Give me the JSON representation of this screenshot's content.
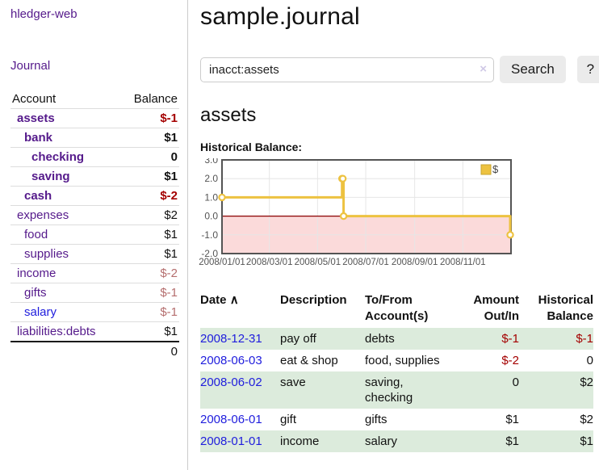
{
  "app": {
    "title": "hledger-web"
  },
  "sidebar": {
    "journal_link": "Journal",
    "accounts": {
      "headers": [
        "Account",
        "Balance"
      ],
      "rows": [
        {
          "account": "assets",
          "balance": "$-1",
          "level": 1,
          "bold": true,
          "balance_style": "neg-dark",
          "link_style": "purple"
        },
        {
          "account": "bank",
          "balance": "$1",
          "level": 2,
          "bold": true,
          "balance_style": "plain",
          "link_style": "purple"
        },
        {
          "account": "checking",
          "balance": "0",
          "level": 3,
          "bold": true,
          "balance_style": "plain",
          "link_style": "purple"
        },
        {
          "account": "saving",
          "balance": "$1",
          "level": 3,
          "bold": true,
          "balance_style": "plain",
          "link_style": "purple"
        },
        {
          "account": "cash",
          "balance": "$-2",
          "level": 2,
          "bold": true,
          "balance_style": "neg-dark",
          "link_style": "purple"
        },
        {
          "account": "expenses",
          "balance": "$2",
          "level": 1,
          "bold": false,
          "balance_style": "plain",
          "link_style": "purple"
        },
        {
          "account": "food",
          "balance": "$1",
          "level": 2,
          "bold": false,
          "balance_style": "plain",
          "link_style": "purple"
        },
        {
          "account": "supplies",
          "balance": "$1",
          "level": 2,
          "bold": false,
          "balance_style": "plain",
          "link_style": "purple"
        },
        {
          "account": "income",
          "balance": "$-2",
          "level": 1,
          "bold": false,
          "balance_style": "neg-rose",
          "link_style": "purple"
        },
        {
          "account": "gifts",
          "balance": "$-1",
          "level": 2,
          "bold": false,
          "balance_style": "neg-rose",
          "link_style": "purple"
        },
        {
          "account": "salary",
          "balance": "$-1",
          "level": 2,
          "bold": false,
          "balance_style": "neg-rose",
          "link_style": "blue"
        },
        {
          "account": "liabilities:debts",
          "balance": "$1",
          "level": 1,
          "bold": false,
          "balance_style": "plain",
          "link_style": "purple"
        }
      ],
      "total": "0"
    }
  },
  "main": {
    "title": "sample.journal",
    "search": {
      "value": "inacct:assets",
      "clear_icon": "×",
      "button_label": "Search",
      "help_label": "?"
    },
    "account_heading": "assets",
    "chart_label": "Historical Balance:",
    "register": {
      "headers": {
        "date": "Date",
        "sort_caret": "∧",
        "description": "Description",
        "accounts": "To/From Account(s)",
        "amount": "Amount Out/In",
        "balance": "Historical Balance"
      },
      "rows": [
        {
          "date": "2008-12-31",
          "description": "pay off",
          "accounts": "debts",
          "amount": "$-1",
          "amount_negative": true,
          "balance": "$-1",
          "balance_negative": true
        },
        {
          "date": "2008-06-03",
          "description": "eat & shop",
          "accounts": "food, supplies",
          "amount": "$-2",
          "amount_negative": true,
          "balance": "0",
          "balance_negative": false
        },
        {
          "date": "2008-06-02",
          "description": "save",
          "accounts": "saving, checking",
          "amount": "0",
          "amount_negative": false,
          "balance": "$2",
          "balance_negative": false
        },
        {
          "date": "2008-06-01",
          "description": "gift",
          "accounts": "gifts",
          "amount": "$1",
          "amount_negative": false,
          "balance": "$2",
          "balance_negative": false
        },
        {
          "date": "2008-01-01",
          "description": "income",
          "accounts": "salary",
          "amount": "$1",
          "amount_negative": false,
          "balance": "$1",
          "balance_negative": false
        }
      ]
    }
  },
  "chart_data": {
    "type": "line",
    "step": true,
    "title": "Historical Balance",
    "series": [
      {
        "name": "$",
        "color": "#edc240",
        "points": [
          {
            "x": "2008-01-01",
            "y": 1
          },
          {
            "x": "2008-06-01",
            "y": 2
          },
          {
            "x": "2008-06-02",
            "y": 2
          },
          {
            "x": "2008-06-03",
            "y": 0
          },
          {
            "x": "2008-12-31",
            "y": -1
          }
        ]
      }
    ],
    "xlim": [
      "2008-01-01",
      "2009-01-01"
    ],
    "ylim": [
      -2,
      3
    ],
    "x_ticks": [
      {
        "date": "2008-01-01",
        "label": "2008/01/01"
      },
      {
        "date": "2008-03-01",
        "label": "2008/03/01"
      },
      {
        "date": "2008-05-01",
        "label": "2008/05/01"
      },
      {
        "date": "2008-07-01",
        "label": "2008/07/01"
      },
      {
        "date": "2008-09-01",
        "label": "2008/09/01"
      },
      {
        "date": "2008-11-01",
        "label": "2008/11/01"
      }
    ],
    "y_ticks": [
      {
        "value": 3,
        "label": "3.0"
      },
      {
        "value": 2,
        "label": "2.0"
      },
      {
        "value": 1,
        "label": "1.0"
      },
      {
        "value": 0,
        "label": "0.0"
      },
      {
        "value": -1,
        "label": "-1.0"
      },
      {
        "value": -2,
        "label": "-2.0"
      }
    ],
    "legend": {
      "position": "top-right",
      "entries": [
        "$"
      ]
    },
    "grid": true,
    "colors": {
      "line": "#edc240",
      "marker_fill": "#ffffff",
      "legend_box_border": "#c7a42f",
      "negative_region": "#fbdada",
      "zero_line": "#8b0000",
      "gridline": "#e6e6e6",
      "plot_border": "#545454",
      "axis_text": "#545454"
    }
  },
  "colors": {
    "purple_link": "#551a8b",
    "blue_link": "#1f1ddd",
    "negative_dark": "#a40000",
    "negative_rose": "#b56e6e",
    "row_stripe_green": "#dcebdc",
    "divider": "#cccccc"
  }
}
